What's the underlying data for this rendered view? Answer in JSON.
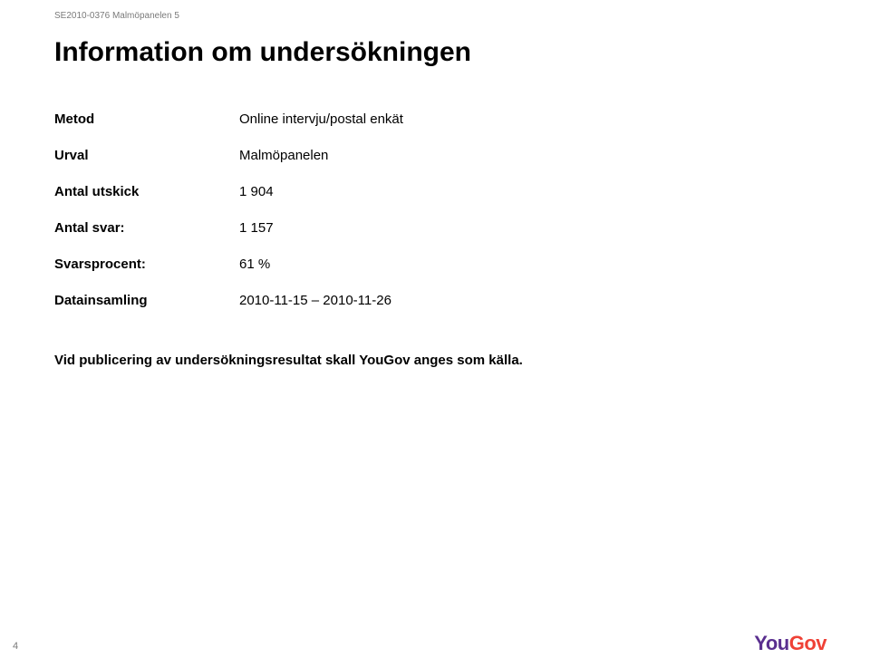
{
  "header_text": "SE2010-0376 Malmöpanelen 5",
  "title": "Information om undersökningen",
  "rows": [
    {
      "label": "Metod",
      "value": "Online intervju/postal enkät"
    },
    {
      "label": "Urval",
      "value": "Malmöpanelen"
    },
    {
      "label": "Antal utskick",
      "value": "1 904"
    },
    {
      "label": "Antal svar:",
      "value": "1 157"
    },
    {
      "label": "Svarsprocent:",
      "value": "61 %"
    },
    {
      "label": "Datainsamling",
      "value": "2010-11-15 – 2010-11-26"
    }
  ],
  "footnote": "Vid publicering av undersökningsresultat skall YouGov anges som källa.",
  "page_number": "4",
  "logo": {
    "part1": "You",
    "part2": "Gov",
    "color1": "#5a2f8f",
    "color2": "#ef4136"
  }
}
